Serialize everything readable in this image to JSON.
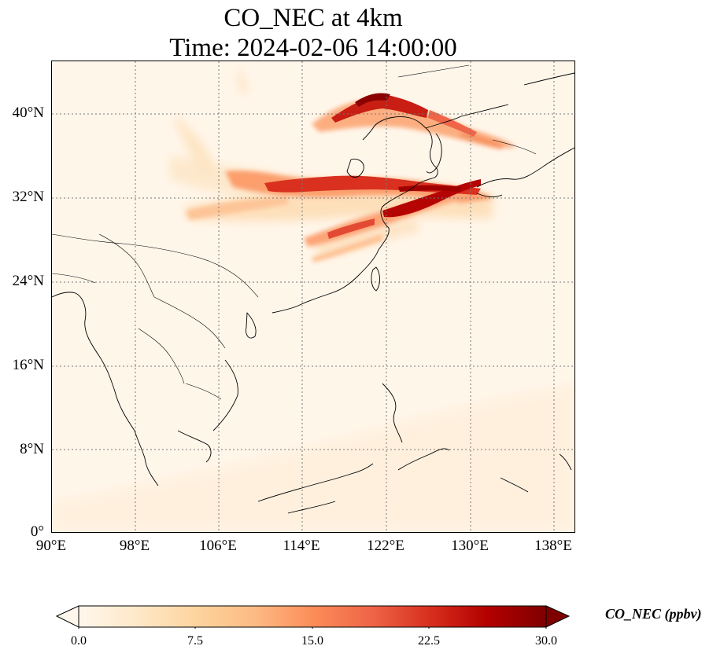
{
  "title": {
    "line1": "CO_NEC at 4km",
    "line2": "Time: 2024-02-06 14:00:00"
  },
  "axes": {
    "x_ticks": [
      "90°E",
      "98°E",
      "106°E",
      "114°E",
      "122°E",
      "130°E",
      "138°E"
    ],
    "x_tick_values": [
      90,
      98,
      106,
      114,
      122,
      130,
      138
    ],
    "y_ticks": [
      "40°N",
      "32°N",
      "24°N",
      "16°N",
      "8°N",
      "0°"
    ],
    "y_tick_values": [
      40,
      32,
      24,
      16,
      8,
      0
    ],
    "lon_range": [
      90,
      140
    ],
    "lat_range": [
      0,
      45
    ],
    "gridlines": "dotted"
  },
  "colorbar": {
    "label": "CO_NEC (ppbv)",
    "ticks": [
      "0.0",
      "7.5",
      "15.0",
      "22.5",
      "30.0"
    ],
    "tick_values": [
      0,
      7.5,
      15,
      22.5,
      30
    ],
    "range": [
      0,
      30
    ],
    "extend": "both",
    "colormap": "OrRd",
    "colors": [
      "#fff7ec",
      "#fee8c8",
      "#fdd49e",
      "#fdbb84",
      "#fc8d59",
      "#ef6548",
      "#d7301f",
      "#b30000",
      "#7f0000"
    ]
  },
  "field": {
    "variable": "CO_NEC",
    "background_color": "#fff6ea",
    "plumes": [
      {
        "region": "northern China / Korea band",
        "peak_ppbv": 30
      },
      {
        "region": "central China to southern Japan band",
        "peak_ppbv": 28
      },
      {
        "region": "East China Sea band",
        "peak_ppbv": 24
      },
      {
        "region": "northwest faint band",
        "peak_ppbv": 6
      }
    ]
  }
}
